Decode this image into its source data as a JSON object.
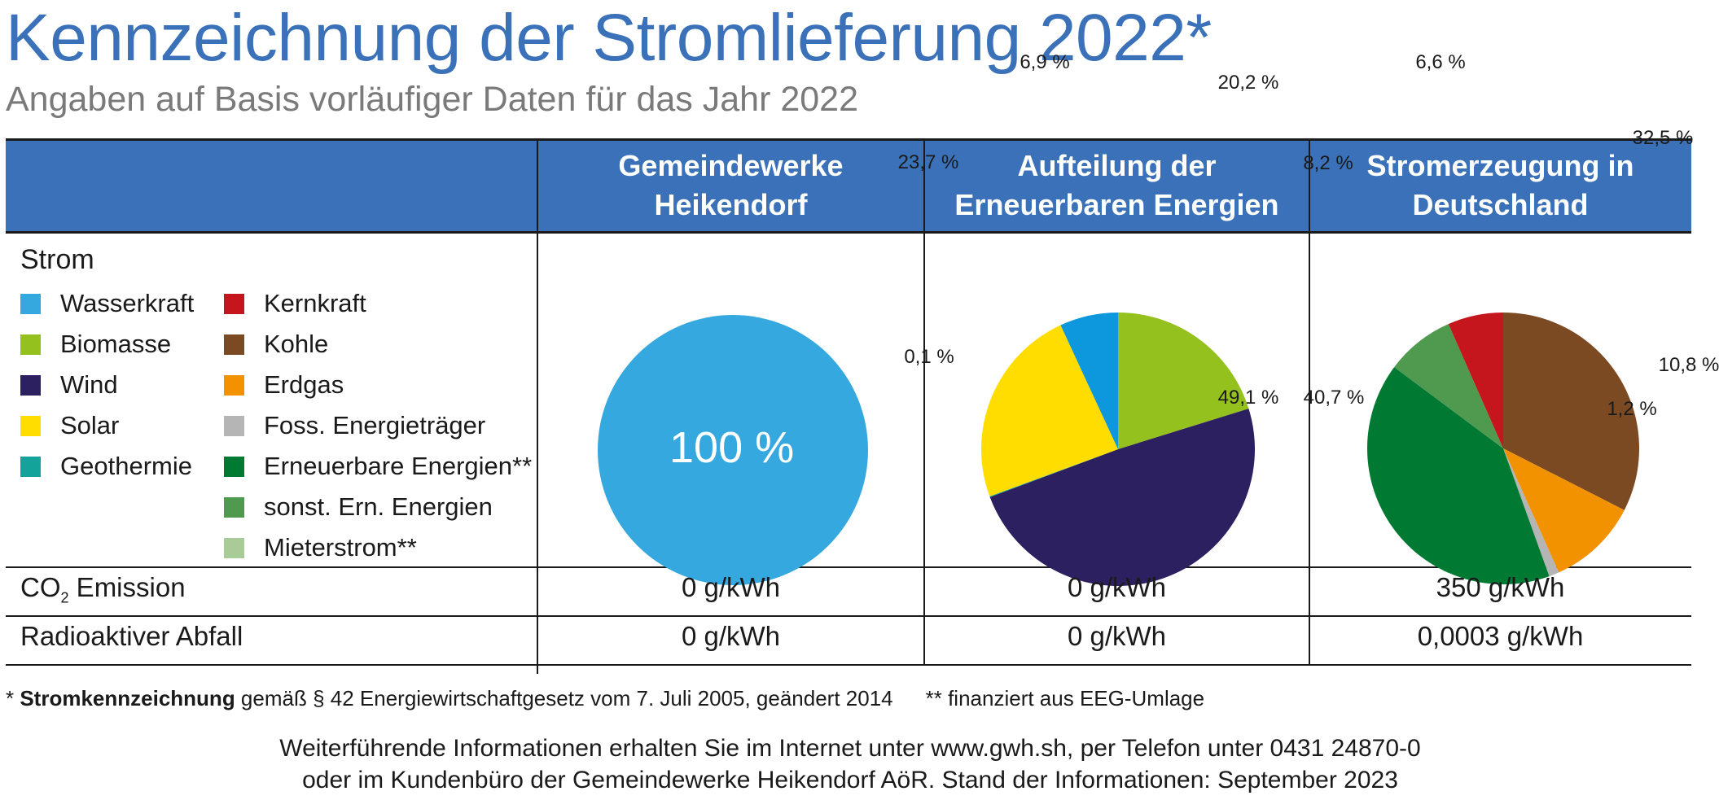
{
  "title": "Kennzeichnung der Stromlieferung 2022*",
  "subtitle": "Angaben auf Basis vorläufiger Daten für das Jahr 2022",
  "columns": [
    "Gemeindewerke\nHeikendorf",
    "Aufteilung der\nErneuerbaren Energien",
    "Stromerzeugung in\nDeutschland"
  ],
  "strom_label": "Strom",
  "legend": [
    {
      "label": "Wasserkraft",
      "color": "#36a8e0"
    },
    {
      "label": "Biomasse",
      "color": "#95c11f"
    },
    {
      "label": "Wind",
      "color": "#2c2060"
    },
    {
      "label": "Solar",
      "color": "#ffdd00"
    },
    {
      "label": "Geothermie",
      "color": "#13a39a"
    },
    {
      "label": "Kernkraft",
      "color": "#c4161c"
    },
    {
      "label": "Kohle",
      "color": "#7b4a23"
    },
    {
      "label": "Erdgas",
      "color": "#f39200"
    },
    {
      "label": "Foss. Energieträger",
      "color": "#b5b5b5"
    },
    {
      "label": "Erneuerbare Energien**",
      "color": "#007a33"
    },
    {
      "label": "sonst. Ern. Energien",
      "color": "#4f9a4f"
    },
    {
      "label": "Mieterstrom**",
      "color": "#a8cb97"
    }
  ],
  "co2": {
    "label_main": "CO",
    "label_sub": "2",
    "label_rest": " Emission",
    "values": [
      "0 g/kWh",
      "0 g/kWh",
      "350 g/kWh"
    ]
  },
  "radio": {
    "label": "Radioaktiver Abfall",
    "values": [
      "0 g/kWh",
      "0 g/kWh",
      "0,0003 g/kWh"
    ]
  },
  "footnote": {
    "star": "* ",
    "bold": "Stromkennzeichnung",
    "rest": " gemäß § 42 Energiewirtschaftgesetz vom 7. Juli 2005, geändert 2014",
    "double": "** finanziert aus EEG-Umlage"
  },
  "info": [
    "Weiterführende Informationen erhalten Sie im Internet unter www.gwh.sh, per Telefon unter 0431 24870-0",
    "oder im Kundenbüro der Gemeindewerke Heikendorf AöR. Stand der Informationen: September 2023"
  ],
  "chart_data": [
    {
      "type": "pie",
      "title": "Gemeindewerke Heikendorf",
      "slices": [
        {
          "label": "Wasserkraft",
          "value": 100,
          "text": "100 %",
          "color": "#36a8e0"
        }
      ]
    },
    {
      "type": "pie",
      "title": "Aufteilung der Erneuerbaren Energien",
      "slices": [
        {
          "label": "Biomasse",
          "value": 20.2,
          "text": "20,2 %",
          "color": "#95c11f"
        },
        {
          "label": "Wind",
          "value": 49.1,
          "text": "49,1 %",
          "color": "#2c2060"
        },
        {
          "label": "Geothermie",
          "value": 0.1,
          "text": "0,1 %",
          "color": "#13a39a"
        },
        {
          "label": "Solar",
          "value": 23.7,
          "text": "23,7 %",
          "color": "#ffdd00"
        },
        {
          "label": "Wasserkraft",
          "value": 6.9,
          "text": "6,9 %",
          "color": "#0d97dc"
        }
      ]
    },
    {
      "type": "pie",
      "title": "Stromerzeugung in Deutschland",
      "slices": [
        {
          "label": "Kohle",
          "value": 32.5,
          "text": "32,5 %",
          "color": "#7b4a23"
        },
        {
          "label": "Erdgas",
          "value": 10.8,
          "text": "10,8 %",
          "color": "#f39200"
        },
        {
          "label": "Foss. Energieträger",
          "value": 1.2,
          "text": "1,2 %",
          "color": "#b5b5b5"
        },
        {
          "label": "Erneuerbare Energien**",
          "value": 40.7,
          "text": "40,7 %",
          "color": "#007a33"
        },
        {
          "label": "sonst. Ern. Energien",
          "value": 8.2,
          "text": "8,2 %",
          "color": "#4f9a4f"
        },
        {
          "label": "Kernkraft",
          "value": 6.6,
          "text": "6,6 %",
          "color": "#c4161c"
        }
      ]
    }
  ]
}
